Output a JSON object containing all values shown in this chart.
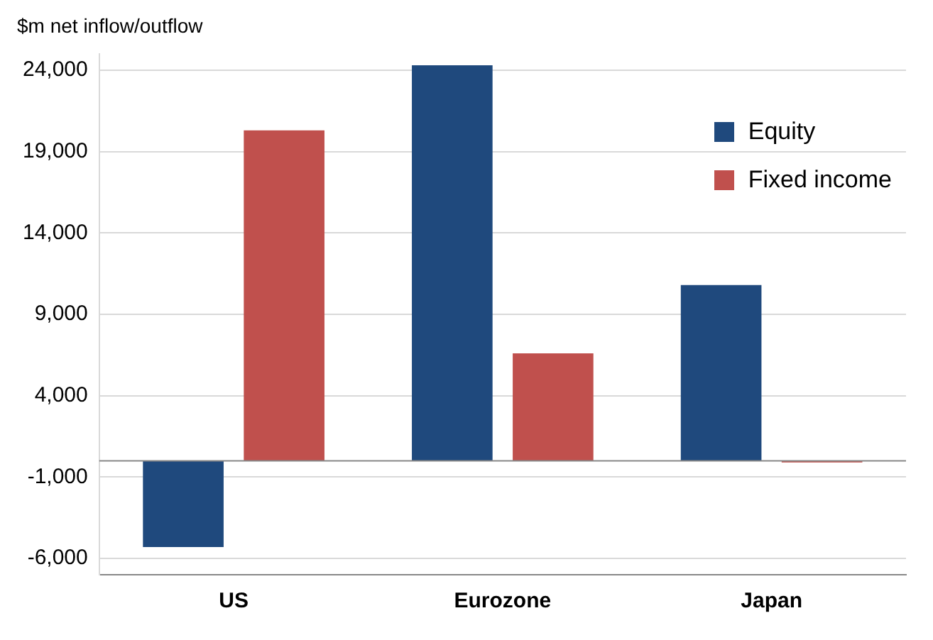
{
  "chart_data": {
    "type": "bar",
    "ylabel": "$m net inflow/outflow",
    "categories": [
      "US",
      "Eurozone",
      "Japan"
    ],
    "series": [
      {
        "name": "Equity",
        "color": "#1f497d",
        "values": [
          -5300,
          24300,
          10800
        ]
      },
      {
        "name": "Fixed income",
        "color": "#c0504d",
        "values": [
          20300,
          6600,
          -100
        ]
      }
    ],
    "ylim": [
      -7000,
      25000
    ],
    "yticks": [
      {
        "value": -6000,
        "label": "-6,000"
      },
      {
        "value": -1000,
        "label": "-1,000"
      },
      {
        "value": 4000,
        "label": "4,000"
      },
      {
        "value": 9000,
        "label": "9,000"
      },
      {
        "value": 14000,
        "label": "14,000"
      },
      {
        "value": 19000,
        "label": "19,000"
      },
      {
        "value": 24000,
        "label": "24,000"
      }
    ],
    "grid": "y",
    "legend": "top right"
  }
}
